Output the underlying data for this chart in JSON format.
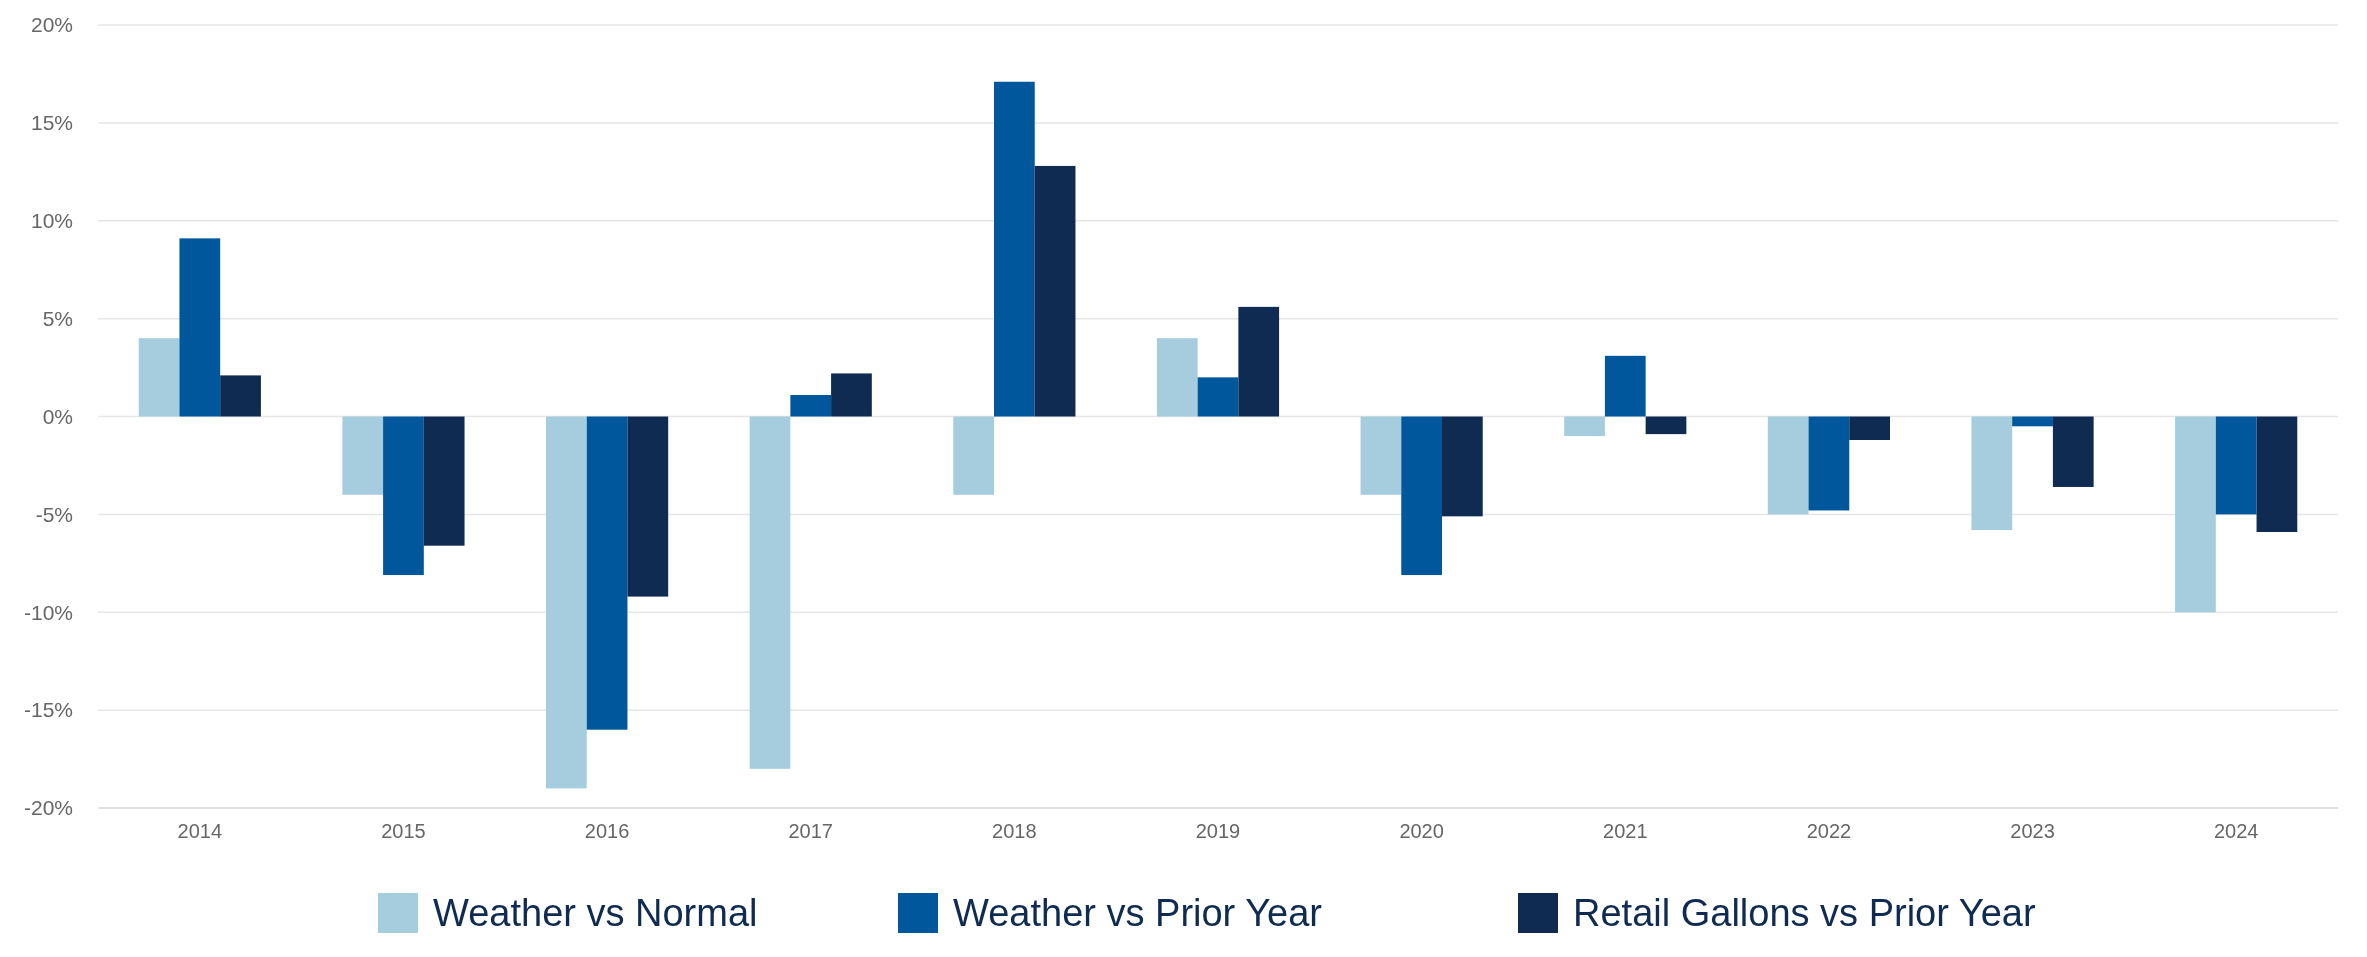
{
  "chart_data": {
    "type": "bar",
    "categories": [
      "2014",
      "2015",
      "2016",
      "2017",
      "2018",
      "2019",
      "2020",
      "2021",
      "2022",
      "2023",
      "2024"
    ],
    "series": [
      {
        "name": "Weather vs Normal",
        "color": "#a6cddd",
        "values": [
          4.0,
          -4.0,
          -19.0,
          -18.0,
          -4.0,
          4.0,
          -4.0,
          -1.0,
          -5.0,
          -5.8,
          -10.0
        ]
      },
      {
        "name": "Weather vs Prior Year",
        "color": "#00579b",
        "values": [
          9.1,
          -8.1,
          -16.0,
          1.1,
          17.1,
          2.0,
          -8.1,
          3.1,
          -4.8,
          -0.5,
          -5.0
        ]
      },
      {
        "name": "Retail Gallons vs Prior Year",
        "color": "#0f2b52",
        "values": [
          2.1,
          -6.6,
          -9.2,
          2.2,
          12.8,
          5.6,
          -5.1,
          -0.9,
          -1.2,
          -3.6,
          -5.9
        ]
      }
    ],
    "ylim": [
      -20,
      20
    ],
    "yticks": [
      {
        "value": -20,
        "label": "-20%"
      },
      {
        "value": -15,
        "label": "-15%"
      },
      {
        "value": -10,
        "label": "-10%"
      },
      {
        "value": -5,
        "label": "-5%"
      },
      {
        "value": 0,
        "label": "0%"
      },
      {
        "value": 5,
        "label": "5%"
      },
      {
        "value": 10,
        "label": "10%"
      },
      {
        "value": 15,
        "label": "15%"
      },
      {
        "value": 20,
        "label": "20%"
      }
    ],
    "grid": "y",
    "legend": "bottom"
  }
}
